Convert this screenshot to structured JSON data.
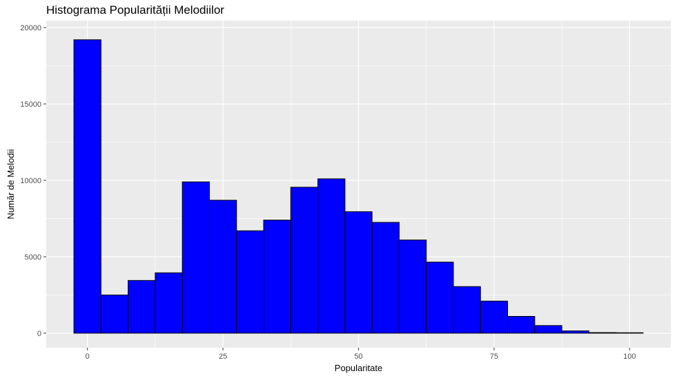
{
  "chart_data": {
    "type": "bar",
    "title": "Histograma Popularității Melodiilor",
    "xlabel": "Popularitate",
    "ylabel": "Număr de Melodii",
    "bin_width": 5,
    "bin_centers": [
      0,
      5,
      10,
      15,
      20,
      25,
      30,
      35,
      40,
      45,
      50,
      55,
      60,
      65,
      70,
      75,
      80,
      85,
      90,
      95,
      100
    ],
    "values": [
      19200,
      2500,
      3450,
      3950,
      9900,
      8700,
      6700,
      7400,
      9550,
      10100,
      7950,
      7250,
      6100,
      4650,
      3050,
      2100,
      1100,
      500,
      150,
      40,
      30
    ],
    "xlim": [
      -7.6,
      107.6
    ],
    "ylim": [
      -950,
      20450
    ],
    "x_ticks": [
      0,
      25,
      50,
      75,
      100
    ],
    "y_ticks": [
      0,
      5000,
      10000,
      15000,
      20000
    ],
    "bar_color": "#0000ff",
    "bar_edge_color": "#000000",
    "panel_background": "#ebebeb",
    "grid_color": "#ffffff",
    "grid": true,
    "legend": "none"
  }
}
